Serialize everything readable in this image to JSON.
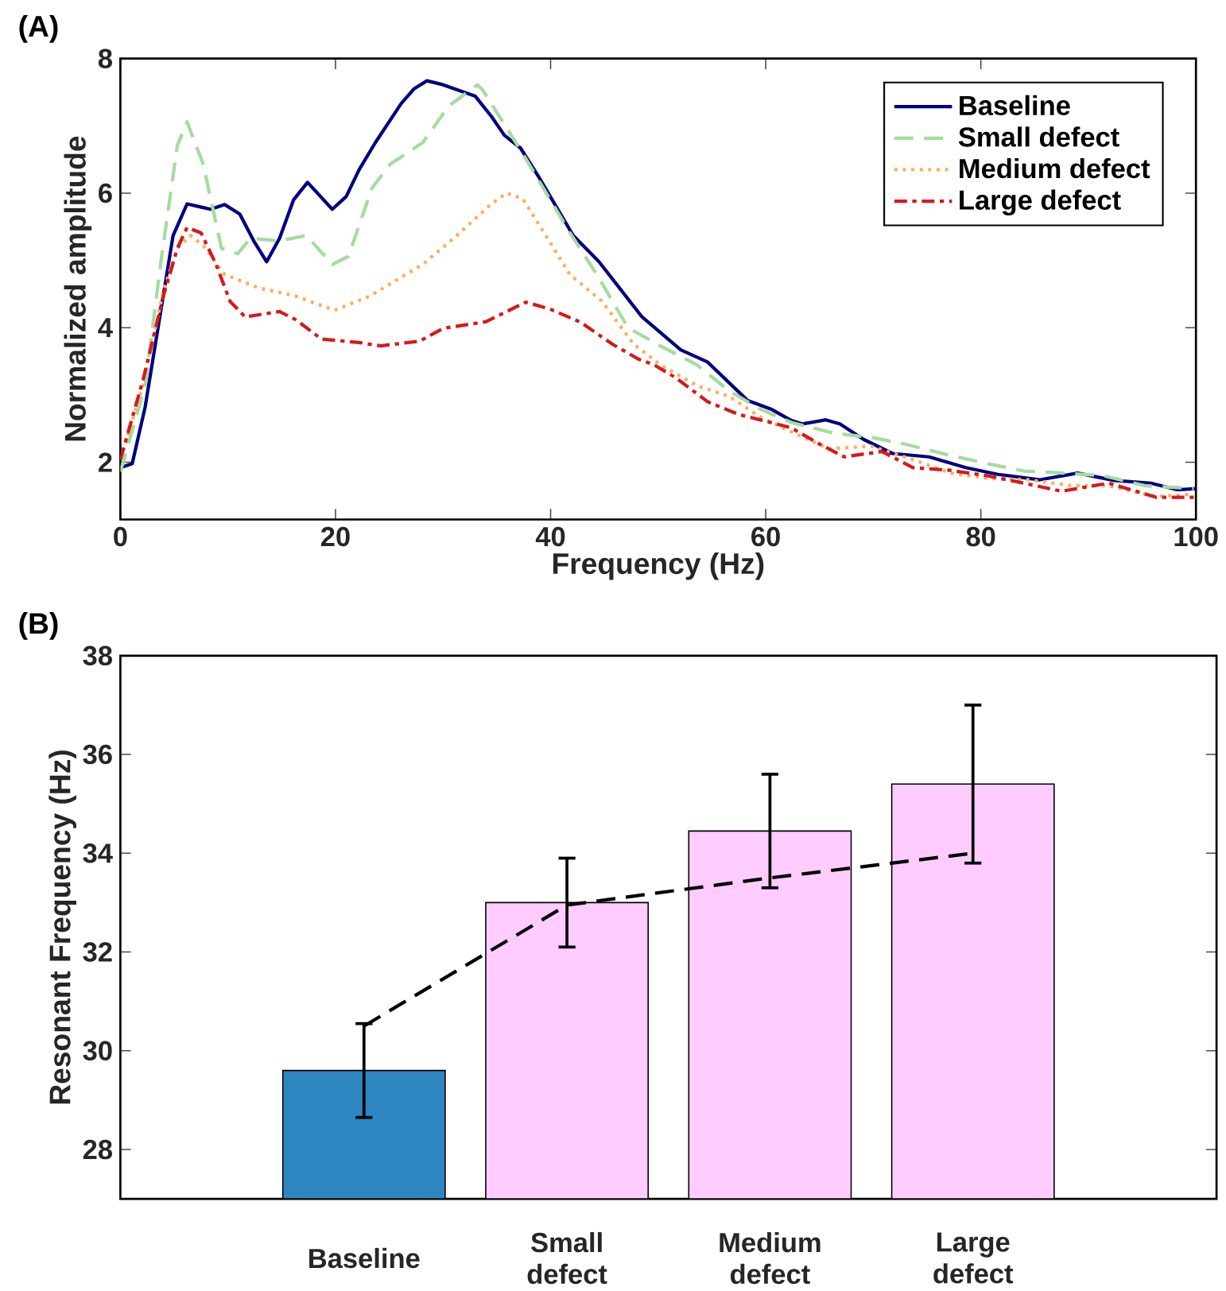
{
  "chart_data": [
    {
      "type": "line",
      "title": "(A)",
      "xlabel": "Frequency (Hz)",
      "ylabel": "Normalized amplitude",
      "xlim": [
        0,
        100
      ],
      "ylim": [
        1.15,
        8
      ],
      "xticks": [
        0,
        20,
        40,
        60,
        80,
        100
      ],
      "yticks": [
        2,
        4,
        6,
        8
      ],
      "legend": "top right",
      "series": [
        {
          "name": "Baseline",
          "color": "#000080",
          "line_style": "solid",
          "x": [
            0,
            1.1,
            2.3,
            4.9,
            6.2,
            8.4,
            9.7,
            11.1,
            12.4,
            13.6,
            14.8,
            16.1,
            17.4,
            19.7,
            21.0,
            22.2,
            23.7,
            26.1,
            27.3,
            28.5,
            29.8,
            33.0,
            34.5,
            35.7,
            37.2,
            38.9,
            42.1,
            44.5,
            48.5,
            52.1,
            54.6,
            58.3,
            60.5,
            62.4,
            63.4,
            65.6,
            66.9,
            69.1,
            71.8,
            75.2,
            78.6,
            81.6,
            85.5,
            89.0,
            92.4,
            95.8,
            98.3,
            100
          ],
          "values": [
            1.92,
            1.98,
            2.82,
            5.37,
            5.84,
            5.76,
            5.83,
            5.69,
            5.29,
            4.98,
            5.33,
            5.9,
            6.16,
            5.76,
            5.95,
            6.35,
            6.75,
            7.33,
            7.55,
            7.67,
            7.62,
            7.44,
            7.14,
            6.86,
            6.67,
            6.24,
            5.37,
            4.98,
            4.16,
            3.67,
            3.49,
            2.92,
            2.79,
            2.62,
            2.57,
            2.63,
            2.57,
            2.34,
            2.13,
            2.08,
            1.92,
            1.82,
            1.74,
            1.84,
            1.73,
            1.69,
            1.59,
            1.61
          ]
        },
        {
          "name": "Small defect",
          "color": "#a6dba0",
          "line_style": "dashed",
          "x": [
            0,
            2.3,
            3.8,
            5.3,
            6.2,
            7.7,
            9.4,
            10.9,
            12.1,
            14.8,
            17.3,
            19.7,
            21.2,
            23.4,
            25.1,
            28.1,
            30.5,
            33.2,
            33.7,
            37.4,
            41.8,
            44.3,
            47.2,
            50.2,
            53.6,
            56.6,
            59.5,
            62.4,
            66.4,
            69.8,
            73.2,
            76.7,
            80.6,
            84.0,
            87.7,
            91.4,
            95.3,
            99.8
          ],
          "values": [
            1.86,
            3.14,
            5.02,
            6.71,
            7.06,
            6.43,
            5.18,
            5.1,
            5.33,
            5.29,
            5.37,
            4.94,
            5.06,
            6.08,
            6.43,
            6.75,
            7.29,
            7.61,
            7.53,
            6.59,
            5.41,
            4.79,
            4.0,
            3.73,
            3.45,
            3.06,
            2.79,
            2.59,
            2.43,
            2.37,
            2.26,
            2.12,
            1.98,
            1.87,
            1.84,
            1.8,
            1.65,
            1.61
          ]
        },
        {
          "name": "Medium defect",
          "color": "#fdae61",
          "line_style": "dotted",
          "x": [
            0,
            2.1,
            4.0,
            5.3,
            6.5,
            7.7,
            9.7,
            12.9,
            16.3,
            19.9,
            23.2,
            28.1,
            31.0,
            34.5,
            35.9,
            37.4,
            39.4,
            41.8,
            44.8,
            47.7,
            50.2,
            53.6,
            56.6,
            59.5,
            62.4,
            65.9,
            69.8,
            73.7,
            77.2,
            80.6,
            84.5,
            88.5,
            91.9,
            96.3,
            99.8
          ],
          "values": [
            2.04,
            3.14,
            4.55,
            5.18,
            5.37,
            5.22,
            4.79,
            4.59,
            4.47,
            4.26,
            4.47,
            4.94,
            5.33,
            5.84,
            6.0,
            5.92,
            5.41,
            4.79,
            4.39,
            3.76,
            3.45,
            3.14,
            2.98,
            2.67,
            2.45,
            2.2,
            2.24,
            2.04,
            1.84,
            1.76,
            1.74,
            1.65,
            1.65,
            1.49,
            1.53
          ]
        },
        {
          "name": "Large defect",
          "color": "#d7191c",
          "line_style": "dashdot",
          "x": [
            0,
            2.1,
            4.0,
            5.3,
            6.2,
            7.5,
            8.9,
            10.2,
            11.6,
            14.8,
            16.3,
            18.7,
            22.2,
            24.2,
            27.8,
            30.0,
            34.0,
            37.7,
            39.9,
            42.8,
            45.7,
            48.2,
            49.6,
            51.6,
            54.6,
            57.5,
            60.5,
            62.4,
            64.9,
            67.3,
            70.8,
            73.7,
            77.2,
            80.6,
            84.0,
            87.5,
            91.9,
            96.3,
            99.8
          ],
          "values": [
            2.04,
            3.22,
            4.47,
            5.18,
            5.49,
            5.41,
            4.94,
            4.39,
            4.16,
            4.24,
            4.12,
            3.83,
            3.78,
            3.73,
            3.8,
            3.99,
            4.09,
            4.38,
            4.28,
            4.08,
            3.76,
            3.53,
            3.45,
            3.26,
            2.9,
            2.71,
            2.59,
            2.51,
            2.28,
            2.08,
            2.16,
            1.92,
            1.88,
            1.8,
            1.69,
            1.57,
            1.69,
            1.48,
            1.48
          ]
        }
      ]
    },
    {
      "type": "bar",
      "title": "(B)",
      "ylabel": "Resonant Frequency (Hz)",
      "categories": [
        "Baseline",
        "Small defect",
        "Medium defect",
        "Large defect"
      ],
      "ylim": [
        27,
        38
      ],
      "yticks": [
        28,
        30,
        32,
        34,
        36,
        38
      ],
      "series": [
        {
          "type": "bar",
          "colors": [
            "#2e86c1",
            "#ffccff",
            "#ffccff",
            "#ffccff"
          ],
          "values": [
            29.6,
            33.0,
            34.45,
            35.4
          ],
          "errors": [
            0.95,
            0.9,
            1.15,
            1.6
          ]
        },
        {
          "type": "line",
          "color": "#000000",
          "line_style": "dashed",
          "values": [
            30.5,
            32.95,
            33.5,
            34.0
          ]
        }
      ]
    }
  ]
}
